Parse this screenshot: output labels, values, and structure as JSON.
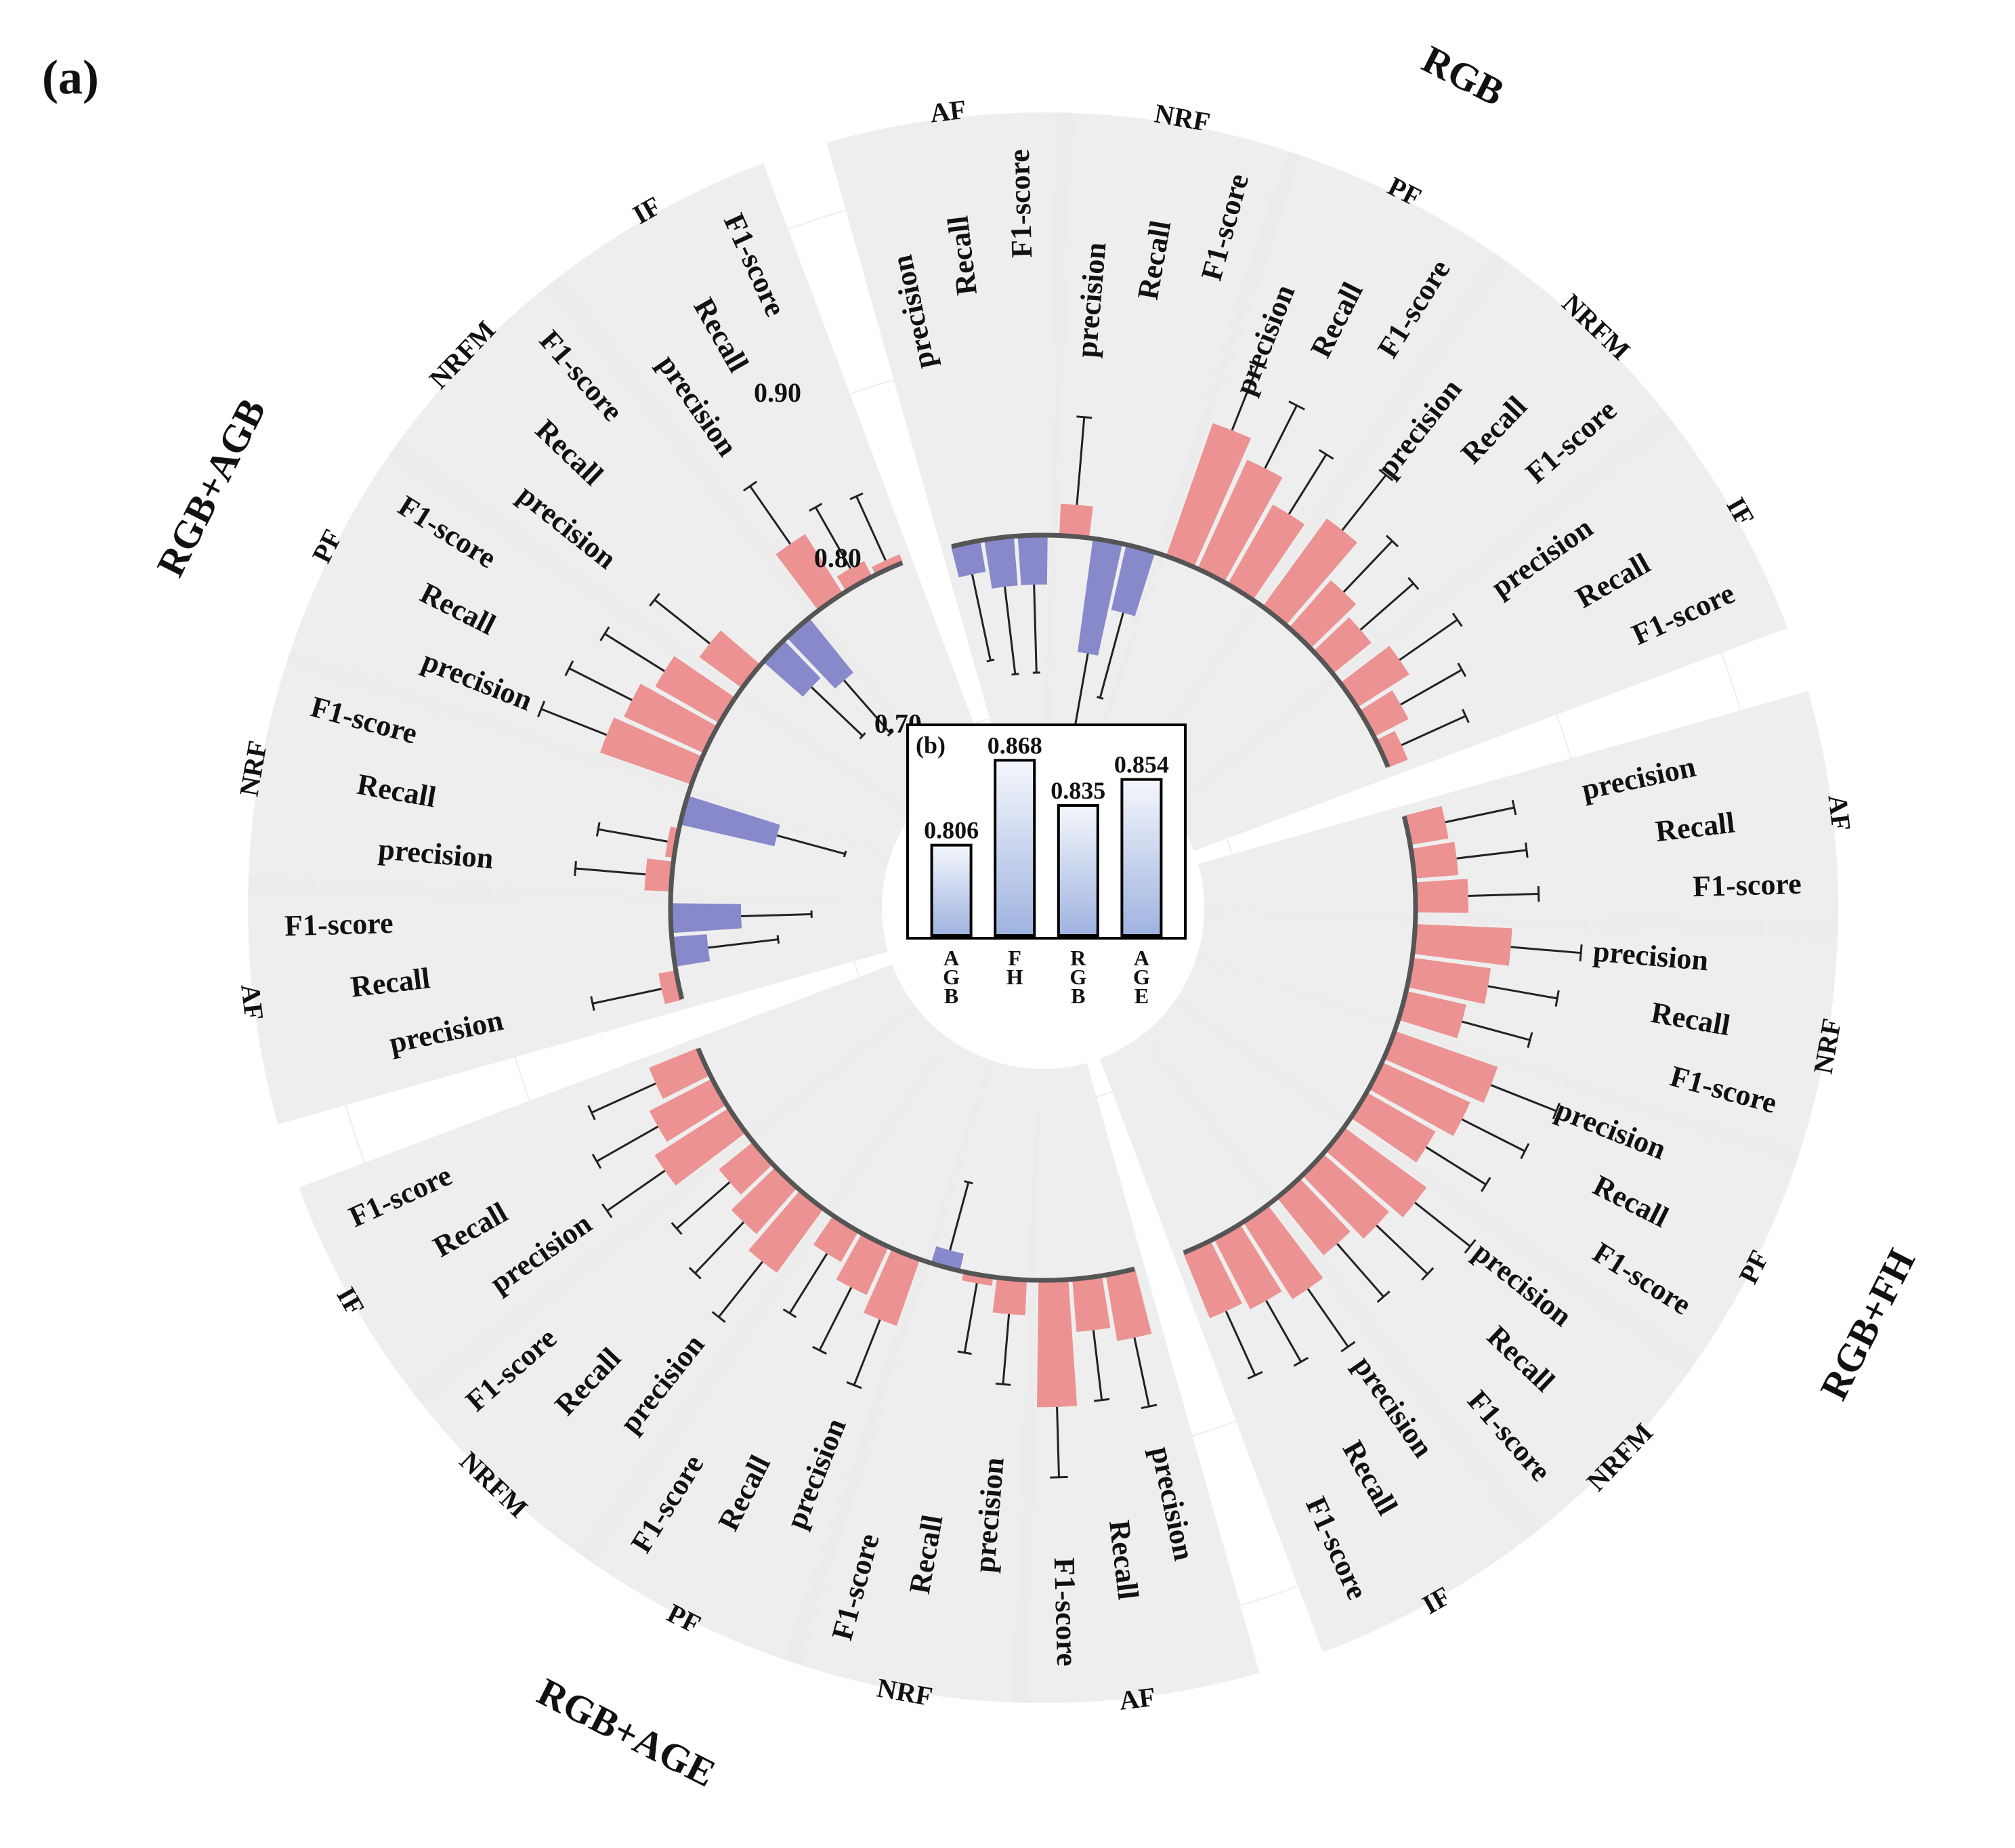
{
  "panel_a_label": "(a)",
  "chart_data": [
    {
      "type": "circular_bar",
      "panel": "(a)",
      "radial_axis": {
        "ticks": [
          0.7,
          0.8,
          0.9
        ],
        "tick_labels": [
          "0.70",
          "0.80",
          "0.90"
        ],
        "baseline": 0.8,
        "range": [
          0.55,
          1.05
        ]
      },
      "colors": {
        "above_baseline": "#eb8a8a",
        "below_baseline": "#7e80c8",
        "background_sector": "#ebebeb",
        "baseline_arc": "#555555",
        "error_bar": "#222222"
      },
      "metrics": [
        "precision",
        "Recall",
        "F1-score"
      ],
      "groups": [
        {
          "name": "RGB",
          "classes": [
            {
              "name": "AF",
              "values": [
                0.782,
                0.772,
                0.772
              ],
              "errors": [
                0.05,
                0.05,
                0.05
              ]
            },
            {
              "name": "NRF",
              "values": [
                0.818,
                0.735,
                0.762
              ],
              "errors": [
                0.05,
                0.06,
                0.05
              ]
            },
            {
              "name": "PF",
              "values": [
                0.88,
                0.868,
                0.852
              ],
              "errors": [
                0.04,
                0.04,
                0.04
              ]
            },
            {
              "name": "NRFM",
              "values": [
                0.862,
                0.836,
                0.828
              ],
              "errors": [
                0.04,
                0.04,
                0.04
              ]
            },
            {
              "name": "IF",
              "values": [
                0.835,
                0.822,
                0.812
              ],
              "errors": [
                0.04,
                0.04,
                0.04
              ]
            }
          ]
        },
        {
          "name": "RGB+FH",
          "classes": [
            {
              "name": "AF",
              "values": [
                0.822,
                0.825,
                0.83
              ],
              "errors": [
                0.04,
                0.04,
                0.04
              ]
            },
            {
              "name": "NRF",
              "values": [
                0.855,
                0.845,
                0.835
              ],
              "errors": [
                0.04,
                0.04,
                0.04
              ]
            },
            {
              "name": "PF",
              "values": [
                0.862,
                0.855,
                0.845
              ],
              "errors": [
                0.04,
                0.04,
                0.04
              ]
            },
            {
              "name": "NRFM",
              "values": [
                0.858,
                0.85,
                0.842
              ],
              "errors": [
                0.04,
                0.04,
                0.04
              ]
            },
            {
              "name": "IF",
              "values": [
                0.852,
                0.845,
                0.84
              ],
              "errors": [
                0.04,
                0.04,
                0.04
              ]
            }
          ]
        },
        {
          "name": "RGB+AGE",
          "classes": [
            {
              "name": "AF",
              "values": [
                0.838,
                0.83,
                0.872
              ],
              "errors": [
                0.04,
                0.04,
                0.04
              ]
            },
            {
              "name": "NRF",
              "values": [
                0.82,
                0.805,
                0.79
              ],
              "errors": [
                0.04,
                0.04,
                0.04
              ]
            },
            {
              "name": "PF",
              "values": [
                0.84,
                0.83,
                0.82
              ],
              "errors": [
                0.04,
                0.04,
                0.04
              ]
            },
            {
              "name": "NRFM",
              "values": [
                0.845,
                0.835,
                0.825
              ],
              "errors": [
                0.04,
                0.04,
                0.04
              ]
            },
            {
              "name": "IF",
              "values": [
                0.85,
                0.84,
                0.83
              ],
              "errors": [
                0.04,
                0.04,
                0.04
              ]
            }
          ]
        },
        {
          "name": "RGB+AGB",
          "classes": [
            {
              "name": "AF",
              "values": [
                0.81,
                0.78,
                0.76
              ],
              "errors": [
                0.04,
                0.04,
                0.04
              ]
            },
            {
              "name": "NRF",
              "values": [
                0.815,
                0.805,
                0.745
              ],
              "errors": [
                0.04,
                0.04,
                0.04
              ]
            },
            {
              "name": "PF",
              "values": [
                0.855,
                0.85,
                0.842
              ],
              "errors": [
                0.04,
                0.04,
                0.04
              ]
            },
            {
              "name": "NRFM",
              "values": [
                0.83,
                0.77,
                0.76
              ],
              "errors": [
                0.04,
                0.04,
                0.04
              ]
            },
            {
              "name": "IF",
              "values": [
                0.84,
                0.81,
                0.805
              ],
              "errors": [
                0.04,
                0.04,
                0.04
              ]
            }
          ]
        }
      ]
    },
    {
      "type": "bar",
      "panel": "(b)",
      "categories": [
        [
          "A",
          "G",
          "B"
        ],
        [
          "F",
          "H"
        ],
        [
          "R",
          "G",
          "B"
        ],
        [
          "A",
          "G",
          "E"
        ]
      ],
      "values": [
        0.806,
        0.868,
        0.835,
        0.854
      ],
      "value_labels": [
        "0.806",
        "0.868",
        "0.835",
        "0.854"
      ],
      "ylim": [
        0.74,
        0.885
      ]
    }
  ]
}
